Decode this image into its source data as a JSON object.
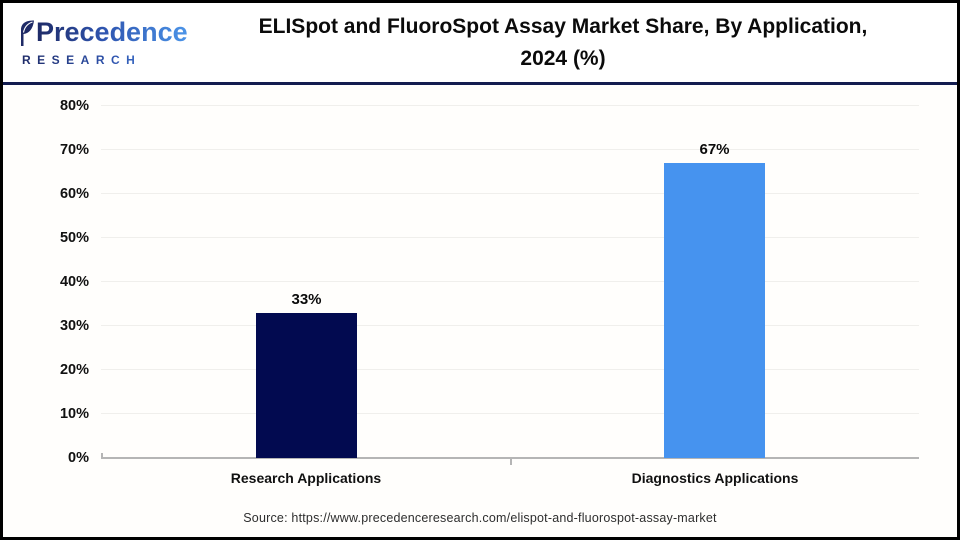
{
  "header": {
    "logo": {
      "name": "Precedence",
      "subtitle": "RESEARCH"
    },
    "title_line1": "ELISpot and FluoroSpot Assay Market Share, By Application,",
    "title_line2": "2024 (%)"
  },
  "chart_data": {
    "type": "bar",
    "title": "ELISpot and FluoroSpot Assay Market Share, By Application, 2024 (%)",
    "categories": [
      "Research Applications",
      "Diagnostics Applications"
    ],
    "values": [
      33,
      67
    ],
    "value_labels": [
      "33%",
      "67%"
    ],
    "bar_colors": [
      "#020a50",
      "#4693ef"
    ],
    "xlabel": "",
    "ylabel": "",
    "ylim": [
      0,
      80
    ],
    "ytick_step": 10,
    "ytick_labels": [
      "0%",
      "10%",
      "20%",
      "30%",
      "40%",
      "50%",
      "60%",
      "70%",
      "80%"
    ],
    "grid": true,
    "legend": false
  },
  "footer": {
    "source": "Source: https://www.precedenceresearch.com/elispot-and-fluorospot-assay-market"
  },
  "colors": {
    "bar_research": "#020a50",
    "bar_diagnostics": "#4693ef",
    "header_divider": "#131c4f",
    "axis_line": "#b5b5b5",
    "gridline": "#f0efec",
    "logo_navy": "#1e2a66",
    "logo_blue": "#4b94e8"
  }
}
